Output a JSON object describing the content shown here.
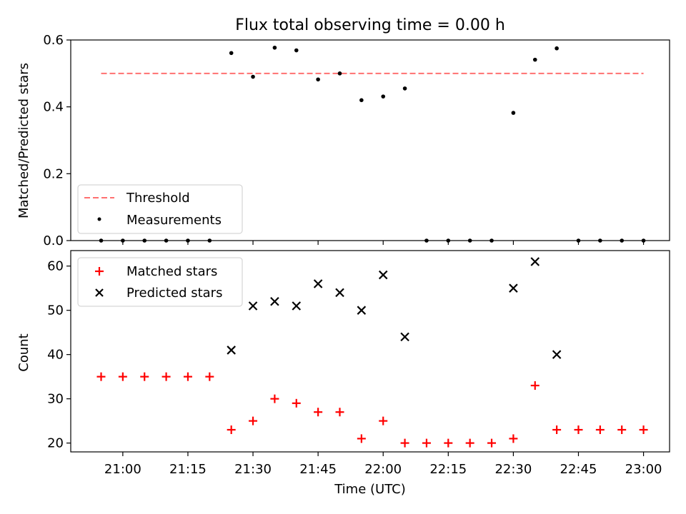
{
  "title": "Flux total observing time = 0.00 h",
  "chart_data": [
    {
      "type": "scatter",
      "ylabel": "Matched/Predicted stars",
      "ylim": [
        0,
        0.6
      ],
      "yticks": [
        0.0,
        0.2,
        0.4,
        0.6
      ],
      "ytick_labels": [
        "0.0",
        "0.2",
        "0.4",
        "0.6"
      ],
      "xlim": [
        "20:48",
        "23:06"
      ],
      "grid": false,
      "legend_position": "lower-left",
      "series": [
        {
          "name": "Threshold",
          "kind": "dashed-line",
          "color": "#ff7070",
          "x": [
            "20:55",
            "23:00"
          ],
          "y": [
            0.5,
            0.5
          ]
        },
        {
          "name": "Measurements",
          "kind": "dot",
          "color": "#000000",
          "x": [
            "20:55",
            "21:00",
            "21:05",
            "21:10",
            "21:15",
            "21:20",
            "21:25",
            "21:30",
            "21:35",
            "21:40",
            "21:45",
            "21:50",
            "21:55",
            "22:00",
            "22:05",
            "22:10",
            "22:15",
            "22:20",
            "22:25",
            "22:30",
            "22:35",
            "22:40",
            "22:45",
            "22:50",
            "22:55",
            "23:00"
          ],
          "y": [
            0,
            0,
            0,
            0,
            0,
            0,
            0.561,
            0.49,
            0.577,
            0.569,
            0.482,
            0.5,
            0.42,
            0.431,
            0.455,
            0,
            0,
            0,
            0,
            0.382,
            0.541,
            0.575,
            0,
            0,
            0,
            0
          ]
        }
      ]
    },
    {
      "type": "scatter",
      "xlabel": "Time (UTC)",
      "ylabel": "Count",
      "ylim": [
        18,
        63.5
      ],
      "yticks": [
        20,
        30,
        40,
        50,
        60
      ],
      "ytick_labels": [
        "20",
        "30",
        "40",
        "50",
        "60"
      ],
      "xlim": [
        "20:48",
        "23:06"
      ],
      "xticks": [
        "21:00",
        "21:15",
        "21:30",
        "21:45",
        "22:00",
        "22:15",
        "22:30",
        "22:45",
        "23:00"
      ],
      "xtick_labels": [
        "21:00",
        "21:15",
        "21:30",
        "21:45",
        "22:00",
        "22:15",
        "22:30",
        "22:45",
        "23:00"
      ],
      "grid": false,
      "legend_position": "top-left",
      "series": [
        {
          "name": "Matched stars",
          "kind": "plus",
          "color": "#ff0000",
          "x": [
            "20:55",
            "21:00",
            "21:05",
            "21:10",
            "21:15",
            "21:20",
            "21:25",
            "21:30",
            "21:35",
            "21:40",
            "21:45",
            "21:50",
            "21:55",
            "22:00",
            "22:05",
            "22:10",
            "22:15",
            "22:20",
            "22:25",
            "22:30",
            "22:35",
            "22:40",
            "22:45",
            "22:50",
            "22:55",
            "23:00"
          ],
          "y": [
            35,
            35,
            35,
            35,
            35,
            35,
            23,
            25,
            30,
            29,
            27,
            27,
            21,
            25,
            20,
            20,
            20,
            20,
            20,
            21,
            33,
            23,
            23,
            23,
            23,
            23
          ]
        },
        {
          "name": "Predicted stars",
          "kind": "x",
          "color": "#000000",
          "x": [
            "21:25",
            "21:30",
            "21:35",
            "21:40",
            "21:45",
            "21:50",
            "21:55",
            "22:00",
            "22:05",
            "22:30",
            "22:35",
            "22:40"
          ],
          "y": [
            41,
            51,
            52,
            51,
            56,
            54,
            50,
            58,
            44,
            55,
            61,
            40
          ]
        }
      ]
    }
  ]
}
